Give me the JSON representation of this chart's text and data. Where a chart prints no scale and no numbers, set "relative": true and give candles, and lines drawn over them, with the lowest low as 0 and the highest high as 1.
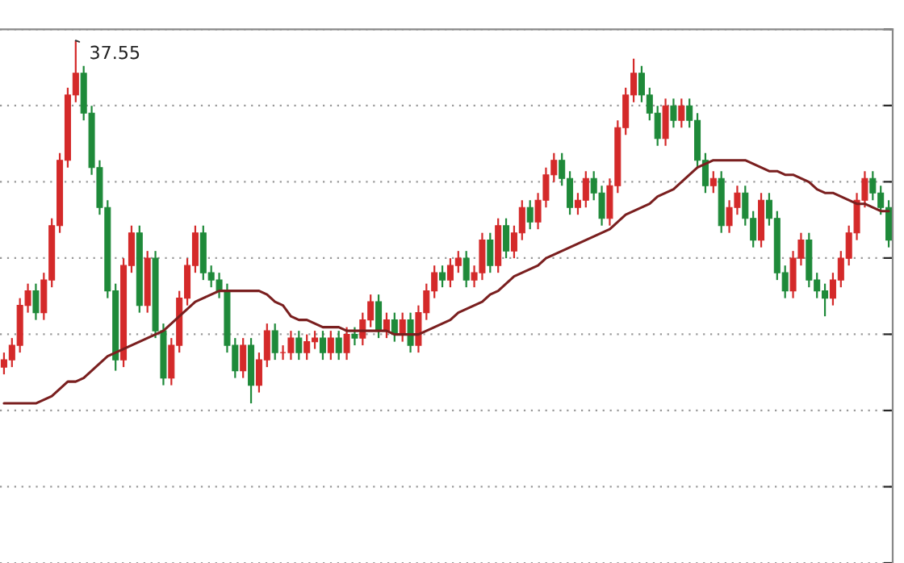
{
  "chart_data": {
    "type": "candlestick",
    "relative": true,
    "grid": "y",
    "categories": [
      null,
      null,
      null,
      null,
      null,
      null,
      null,
      null,
      null,
      null,
      null,
      null,
      null,
      null,
      null,
      null,
      null,
      null,
      null,
      null,
      null,
      null,
      null,
      null,
      null,
      null,
      null,
      null,
      null,
      null,
      null,
      null,
      null,
      null,
      null,
      null,
      null,
      null,
      null,
      null,
      null,
      null,
      null,
      null,
      null,
      null,
      null,
      null,
      null,
      null,
      null,
      null,
      null,
      null,
      null,
      null,
      null,
      null,
      null,
      null,
      null,
      null,
      null,
      null,
      null,
      null,
      null,
      null,
      null,
      null,
      null,
      null,
      null,
      null,
      null,
      null,
      null,
      null,
      null,
      null,
      null,
      null,
      null,
      null,
      null,
      null,
      null,
      null,
      null,
      null,
      null,
      null,
      null,
      null,
      null,
      null,
      null,
      null,
      null,
      null,
      null,
      null,
      null,
      null,
      null,
      null,
      null,
      null,
      null,
      null,
      null,
      null
    ],
    "ohlc": [
      [
        0.1,
        0.14,
        0.08,
        0.12
      ],
      [
        0.12,
        0.18,
        0.1,
        0.16
      ],
      [
        0.16,
        0.29,
        0.14,
        0.27
      ],
      [
        0.27,
        0.33,
        0.25,
        0.31
      ],
      [
        0.31,
        0.33,
        0.23,
        0.25
      ],
      [
        0.25,
        0.36,
        0.23,
        0.34
      ],
      [
        0.34,
        0.51,
        0.32,
        0.49
      ],
      [
        0.49,
        0.69,
        0.47,
        0.67
      ],
      [
        0.67,
        0.87,
        0.65,
        0.85
      ],
      [
        0.85,
        1.0,
        0.83,
        0.91
      ],
      [
        0.91,
        0.93,
        0.78,
        0.8
      ],
      [
        0.8,
        0.82,
        0.63,
        0.65
      ],
      [
        0.65,
        0.67,
        0.52,
        0.54
      ],
      [
        0.54,
        0.56,
        0.29,
        0.31
      ],
      [
        0.31,
        0.33,
        0.09,
        0.12
      ],
      [
        0.12,
        0.4,
        0.1,
        0.38
      ],
      [
        0.38,
        0.49,
        0.36,
        0.47
      ],
      [
        0.47,
        0.49,
        0.25,
        0.27
      ],
      [
        0.27,
        0.42,
        0.25,
        0.4
      ],
      [
        0.4,
        0.42,
        0.18,
        0.2
      ],
      [
        0.2,
        0.22,
        0.05,
        0.07
      ],
      [
        0.07,
        0.18,
        0.05,
        0.16
      ],
      [
        0.16,
        0.31,
        0.14,
        0.29
      ],
      [
        0.29,
        0.4,
        0.27,
        0.38
      ],
      [
        0.38,
        0.49,
        0.36,
        0.47
      ],
      [
        0.47,
        0.49,
        0.34,
        0.36
      ],
      [
        0.36,
        0.38,
        0.32,
        0.34
      ],
      [
        0.34,
        0.36,
        0.29,
        0.31
      ],
      [
        0.31,
        0.33,
        0.14,
        0.16
      ],
      [
        0.16,
        0.18,
        0.07,
        0.09
      ],
      [
        0.09,
        0.18,
        0.07,
        0.16
      ],
      [
        0.16,
        0.18,
        0.0,
        0.05
      ],
      [
        0.05,
        0.14,
        0.03,
        0.12
      ],
      [
        0.12,
        0.22,
        0.1,
        0.2
      ],
      [
        0.2,
        0.22,
        0.12,
        0.14
      ],
      [
        0.14,
        0.16,
        0.12,
        0.14
      ],
      [
        0.14,
        0.2,
        0.12,
        0.18
      ],
      [
        0.18,
        0.2,
        0.12,
        0.14
      ],
      [
        0.14,
        0.19,
        0.12,
        0.17
      ],
      [
        0.17,
        0.2,
        0.15,
        0.18
      ],
      [
        0.18,
        0.2,
        0.12,
        0.14
      ],
      [
        0.14,
        0.2,
        0.12,
        0.18
      ],
      [
        0.18,
        0.2,
        0.12,
        0.14
      ],
      [
        0.14,
        0.21,
        0.12,
        0.19
      ],
      [
        0.19,
        0.21,
        0.16,
        0.18
      ],
      [
        0.18,
        0.25,
        0.16,
        0.23
      ],
      [
        0.23,
        0.3,
        0.21,
        0.28
      ],
      [
        0.28,
        0.3,
        0.18,
        0.2
      ],
      [
        0.2,
        0.25,
        0.18,
        0.23
      ],
      [
        0.23,
        0.25,
        0.17,
        0.19
      ],
      [
        0.19,
        0.25,
        0.17,
        0.23
      ],
      [
        0.23,
        0.25,
        0.14,
        0.16
      ],
      [
        0.16,
        0.27,
        0.14,
        0.25
      ],
      [
        0.25,
        0.33,
        0.23,
        0.31
      ],
      [
        0.31,
        0.38,
        0.29,
        0.36
      ],
      [
        0.36,
        0.38,
        0.32,
        0.34
      ],
      [
        0.34,
        0.4,
        0.32,
        0.38
      ],
      [
        0.38,
        0.42,
        0.36,
        0.4
      ],
      [
        0.4,
        0.42,
        0.32,
        0.34
      ],
      [
        0.34,
        0.38,
        0.32,
        0.36
      ],
      [
        0.36,
        0.47,
        0.34,
        0.45
      ],
      [
        0.45,
        0.47,
        0.36,
        0.38
      ],
      [
        0.38,
        0.51,
        0.36,
        0.49
      ],
      [
        0.49,
        0.51,
        0.4,
        0.42
      ],
      [
        0.42,
        0.49,
        0.4,
        0.47
      ],
      [
        0.47,
        0.56,
        0.45,
        0.54
      ],
      [
        0.54,
        0.56,
        0.48,
        0.5
      ],
      [
        0.5,
        0.58,
        0.48,
        0.56
      ],
      [
        0.56,
        0.65,
        0.54,
        0.63
      ],
      [
        0.63,
        0.69,
        0.61,
        0.67
      ],
      [
        0.67,
        0.69,
        0.6,
        0.62
      ],
      [
        0.62,
        0.64,
        0.52,
        0.54
      ],
      [
        0.54,
        0.58,
        0.52,
        0.56
      ],
      [
        0.56,
        0.64,
        0.54,
        0.62
      ],
      [
        0.62,
        0.64,
        0.56,
        0.58
      ],
      [
        0.58,
        0.6,
        0.49,
        0.51
      ],
      [
        0.51,
        0.62,
        0.49,
        0.6
      ],
      [
        0.6,
        0.78,
        0.58,
        0.76
      ],
      [
        0.76,
        0.87,
        0.74,
        0.85
      ],
      [
        0.85,
        0.95,
        0.83,
        0.91
      ],
      [
        0.91,
        0.93,
        0.83,
        0.85
      ],
      [
        0.85,
        0.87,
        0.78,
        0.8
      ],
      [
        0.8,
        0.82,
        0.71,
        0.73
      ],
      [
        0.73,
        0.84,
        0.71,
        0.82
      ],
      [
        0.82,
        0.84,
        0.76,
        0.78
      ],
      [
        0.78,
        0.84,
        0.76,
        0.82
      ],
      [
        0.82,
        0.84,
        0.76,
        0.78
      ],
      [
        0.78,
        0.8,
        0.65,
        0.67
      ],
      [
        0.67,
        0.69,
        0.58,
        0.6
      ],
      [
        0.6,
        0.64,
        0.58,
        0.62
      ],
      [
        0.62,
        0.64,
        0.47,
        0.49
      ],
      [
        0.49,
        0.56,
        0.47,
        0.54
      ],
      [
        0.54,
        0.6,
        0.52,
        0.58
      ],
      [
        0.58,
        0.6,
        0.49,
        0.51
      ],
      [
        0.51,
        0.53,
        0.43,
        0.45
      ],
      [
        0.45,
        0.58,
        0.43,
        0.56
      ],
      [
        0.56,
        0.58,
        0.49,
        0.51
      ],
      [
        0.51,
        0.53,
        0.34,
        0.36
      ],
      [
        0.36,
        0.38,
        0.29,
        0.31
      ],
      [
        0.31,
        0.42,
        0.29,
        0.4
      ],
      [
        0.4,
        0.47,
        0.38,
        0.45
      ],
      [
        0.45,
        0.47,
        0.32,
        0.34
      ],
      [
        0.34,
        0.36,
        0.29,
        0.31
      ],
      [
        0.31,
        0.33,
        0.24,
        0.29
      ],
      [
        0.29,
        0.36,
        0.27,
        0.34
      ],
      [
        0.34,
        0.42,
        0.32,
        0.4
      ],
      [
        0.4,
        0.49,
        0.38,
        0.47
      ],
      [
        0.47,
        0.58,
        0.45,
        0.56
      ],
      [
        0.56,
        0.64,
        0.54,
        0.62
      ],
      [
        0.62,
        0.64,
        0.56,
        0.58
      ],
      [
        0.58,
        0.6,
        0.52,
        0.54
      ],
      [
        0.54,
        0.56,
        0.43,
        0.45
      ]
    ],
    "colors": [
      "#d42a2a",
      "#d42a2a",
      "#d42a2a",
      "#d42a2a",
      "#1f8a3a",
      "#d42a2a",
      "#d42a2a",
      "#d42a2a",
      "#d42a2a",
      "#d42a2a",
      "#1f8a3a",
      "#1f8a3a",
      "#1f8a3a",
      "#1f8a3a",
      "#1f8a3a",
      "#d42a2a",
      "#d42a2a",
      "#1f8a3a",
      "#d42a2a",
      "#1f8a3a",
      "#1f8a3a",
      "#d42a2a",
      "#d42a2a",
      "#d42a2a",
      "#d42a2a",
      "#1f8a3a",
      "#1f8a3a",
      "#1f8a3a",
      "#1f8a3a",
      "#1f8a3a",
      "#d42a2a",
      "#1f8a3a",
      "#d42a2a",
      "#d42a2a",
      "#1f8a3a",
      "#d42a2a",
      "#d42a2a",
      "#1f8a3a",
      "#d42a2a",
      "#d42a2a",
      "#1f8a3a",
      "#d42a2a",
      "#1f8a3a",
      "#d42a2a",
      "#1f8a3a",
      "#d42a2a",
      "#d42a2a",
      "#1f8a3a",
      "#d42a2a",
      "#1f8a3a",
      "#d42a2a",
      "#1f8a3a",
      "#d42a2a",
      "#d42a2a",
      "#d42a2a",
      "#1f8a3a",
      "#d42a2a",
      "#d42a2a",
      "#1f8a3a",
      "#d42a2a",
      "#d42a2a",
      "#1f8a3a",
      "#d42a2a",
      "#1f8a3a",
      "#d42a2a",
      "#d42a2a",
      "#1f8a3a",
      "#d42a2a",
      "#d42a2a",
      "#d42a2a",
      "#1f8a3a",
      "#1f8a3a",
      "#d42a2a",
      "#d42a2a",
      "#1f8a3a",
      "#1f8a3a",
      "#d42a2a",
      "#d42a2a",
      "#d42a2a",
      "#d42a2a",
      "#1f8a3a",
      "#1f8a3a",
      "#1f8a3a",
      "#d42a2a",
      "#1f8a3a",
      "#d42a2a",
      "#1f8a3a",
      "#1f8a3a",
      "#1f8a3a",
      "#d42a2a",
      "#1f8a3a",
      "#d42a2a",
      "#d42a2a",
      "#1f8a3a",
      "#1f8a3a",
      "#d42a2a",
      "#1f8a3a",
      "#1f8a3a",
      "#1f8a3a",
      "#d42a2a",
      "#d42a2a",
      "#1f8a3a",
      "#1f8a3a",
      "#1f8a3a",
      "#d42a2a",
      "#d42a2a",
      "#d42a2a",
      "#d42a2a",
      "#d42a2a",
      "#1f8a3a",
      "#1f8a3a",
      "#1f8a3a"
    ],
    "series": [
      {
        "type": "line",
        "color": "#7a1f1f",
        "values": [
          0.0,
          0.0,
          0.0,
          0.0,
          0.0,
          0.01,
          0.02,
          0.04,
          0.06,
          0.06,
          0.07,
          0.09,
          0.11,
          0.13,
          0.14,
          0.15,
          0.16,
          0.17,
          0.18,
          0.19,
          0.2,
          0.22,
          0.24,
          0.26,
          0.28,
          0.29,
          0.3,
          0.31,
          0.31,
          0.31,
          0.31,
          0.31,
          0.31,
          0.3,
          0.28,
          0.27,
          0.24,
          0.23,
          0.23,
          0.22,
          0.21,
          0.21,
          0.21,
          0.2,
          0.2,
          0.2,
          0.2,
          0.2,
          0.2,
          0.19,
          0.19,
          0.19,
          0.19,
          0.2,
          0.21,
          0.22,
          0.23,
          0.25,
          0.26,
          0.27,
          0.28,
          0.3,
          0.31,
          0.33,
          0.35,
          0.36,
          0.37,
          0.38,
          0.4,
          0.41,
          0.42,
          0.43,
          0.44,
          0.45,
          0.46,
          0.47,
          0.48,
          0.5,
          0.52,
          0.53,
          0.54,
          0.55,
          0.57,
          0.58,
          0.59,
          0.61,
          0.63,
          0.65,
          0.66,
          0.67,
          0.67,
          0.67,
          0.67,
          0.67,
          0.66,
          0.65,
          0.64,
          0.64,
          0.63,
          0.63,
          0.62,
          0.61,
          0.59,
          0.58,
          0.58,
          0.57,
          0.56,
          0.55,
          0.55,
          0.54,
          0.53,
          0.53
        ]
      }
    ],
    "annotations": [
      "37.55"
    ]
  }
}
